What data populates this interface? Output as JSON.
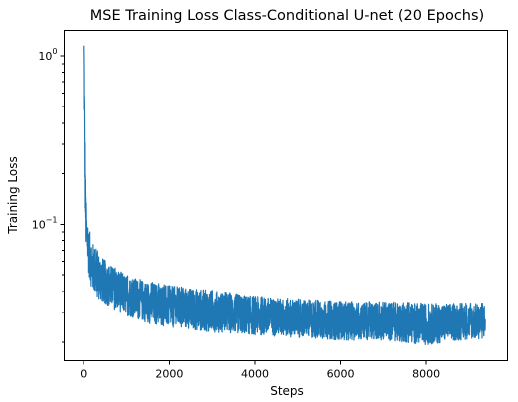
{
  "chart_data": {
    "type": "line",
    "title": "MSE Training Loss Class-Conditional U-net (20 Epochs)",
    "xlabel": "Steps",
    "ylabel": "Training Loss",
    "yscale": "log",
    "xlim": [
      -450,
      9900
    ],
    "ylim": [
      0.0155,
      1.42
    ],
    "xticks": [
      {
        "value": 0,
        "label": "0"
      },
      {
        "value": 2000,
        "label": "2000"
      },
      {
        "value": 4000,
        "label": "4000"
      },
      {
        "value": 6000,
        "label": "6000"
      },
      {
        "value": 8000,
        "label": "8000"
      }
    ],
    "yticks_major": [
      {
        "value": 1,
        "base": "10",
        "exp": "0"
      },
      {
        "value": 0.1,
        "base": "10",
        "exp": "−1"
      }
    ],
    "yticks_minor": [
      0.02,
      0.03,
      0.04,
      0.05,
      0.06,
      0.07,
      0.08,
      0.09,
      0.2,
      0.3,
      0.4,
      0.5,
      0.6,
      0.7,
      0.8,
      0.9
    ],
    "grid": false,
    "color": "#1f77b4",
    "series": [
      {
        "total_steps": 9380,
        "x": [
          0,
          10,
          20,
          30,
          40,
          50,
          60,
          80,
          100,
          150,
          200,
          300,
          400,
          500,
          700,
          1000,
          1500,
          2000,
          2500,
          3000,
          4000,
          5000,
          6000,
          7000,
          8000,
          9000,
          9380
        ],
        "y": [
          1.15,
          0.55,
          0.3,
          0.18,
          0.13,
          0.11,
          0.095,
          0.085,
          0.075,
          0.065,
          0.058,
          0.052,
          0.048,
          0.045,
          0.041,
          0.038,
          0.035,
          0.033,
          0.032,
          0.031,
          0.029,
          0.028,
          0.027,
          0.027,
          0.026,
          0.026,
          0.026
        ],
        "noise_lo": [
          0.99,
          0.65,
          0.6,
          0.6,
          0.6,
          0.6,
          0.65,
          0.68,
          0.7,
          0.68,
          0.68,
          0.7,
          0.72,
          0.74,
          0.76,
          0.76,
          0.74,
          0.74,
          0.74,
          0.74,
          0.76,
          0.76,
          0.76,
          0.76,
          0.74,
          0.8,
          0.8
        ],
        "noise_hi": [
          1.01,
          1.4,
          1.6,
          1.5,
          1.4,
          1.3,
          1.25,
          1.3,
          1.3,
          1.35,
          1.35,
          1.35,
          1.35,
          1.35,
          1.35,
          1.3,
          1.3,
          1.3,
          1.3,
          1.3,
          1.28,
          1.28,
          1.28,
          1.28,
          1.3,
          1.3,
          1.3
        ]
      }
    ]
  }
}
